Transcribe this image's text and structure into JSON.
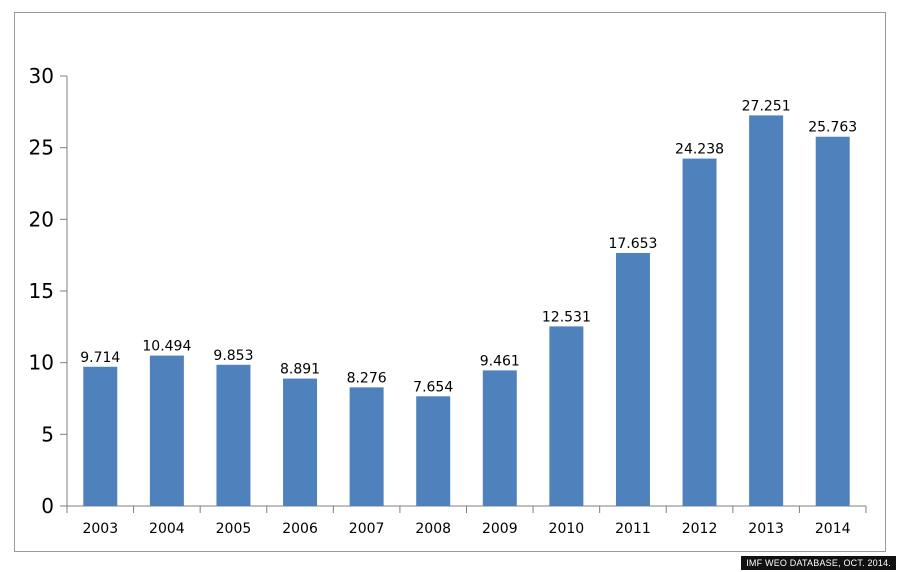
{
  "chart_data": {
    "type": "bar",
    "title": "",
    "xlabel": "",
    "ylabel": "",
    "categories": [
      "2003",
      "2004",
      "2005",
      "2006",
      "2007",
      "2008",
      "2009",
      "2010",
      "2011",
      "2012",
      "2013",
      "2014"
    ],
    "values": [
      9.714,
      10.494,
      9.853,
      8.891,
      8.276,
      7.654,
      9.461,
      12.531,
      17.653,
      24.238,
      27.251,
      25.763
    ],
    "data_labels": [
      "9.714",
      "10.494",
      "9.853",
      "8.891",
      "8.276",
      "7.654",
      "9.461",
      "12.531",
      "17.653",
      "24.238",
      "27.251",
      "25.763"
    ],
    "ylim": [
      0,
      30
    ],
    "yticks": [
      0,
      5,
      10,
      15,
      20,
      25,
      30
    ],
    "grid": false,
    "bar_color": "#4f81bd"
  },
  "source": "IMF WEO DATABASE, OCT. 2014."
}
